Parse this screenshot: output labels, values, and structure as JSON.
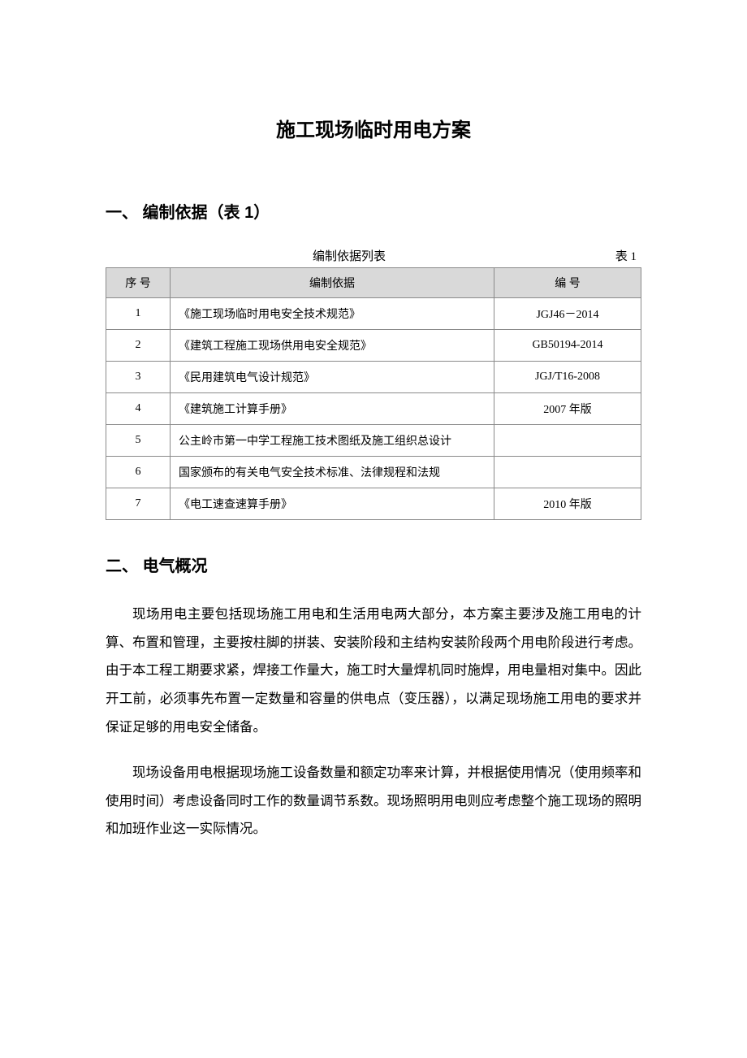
{
  "document": {
    "title": "施工现场临时用电方案"
  },
  "section1": {
    "heading": "一、 编制依据（表 1）",
    "table_caption_center": "编制依据列表",
    "table_caption_right": "表 1",
    "columns": {
      "seq": "序 号",
      "basis": "编制依据",
      "code": "编 号"
    },
    "rows": [
      {
        "seq": "1",
        "basis": "《施工现场临时用电安全技术规范》",
        "code": "JGJ46－2014"
      },
      {
        "seq": "2",
        "basis": "《建筑工程施工现场供用电安全规范》",
        "code": "GB50194-2014"
      },
      {
        "seq": "3",
        "basis": "《民用建筑电气设计规范》",
        "code": "JGJ/T16-2008"
      },
      {
        "seq": "4",
        "basis": "《建筑施工计算手册》",
        "code": "2007 年版"
      },
      {
        "seq": "5",
        "basis": "公主岭市第一中学工程施工技术图纸及施工组织总设计",
        "code": ""
      },
      {
        "seq": "6",
        "basis": "国家颁布的有关电气安全技术标准、法律规程和法规",
        "code": ""
      },
      {
        "seq": "7",
        "basis": "《电工速查速算手册》",
        "code": "2010 年版"
      }
    ]
  },
  "section2": {
    "heading": "二、 电气概况",
    "paragraphs": [
      "现场用电主要包括现场施工用电和生活用电两大部分，本方案主要涉及施工用电的计算、布置和管理，主要按柱脚的拼装、安装阶段和主结构安装阶段两个用电阶段进行考虑。由于本工程工期要求紧，焊接工作量大，施工时大量焊机同时施焊，用电量相对集中。因此开工前，必须事先布置一定数量和容量的供电点（变压器），以满足现场施工用电的要求并保证足够的用电安全储备。",
      "现场设备用电根据现场施工设备数量和额定功率来计算，并根据使用情况（使用频率和使用时间）考虑设备同时工作的数量调节系数。现场照明用电则应考虑整个施工现场的照明和加班作业这一实际情况。"
    ]
  }
}
